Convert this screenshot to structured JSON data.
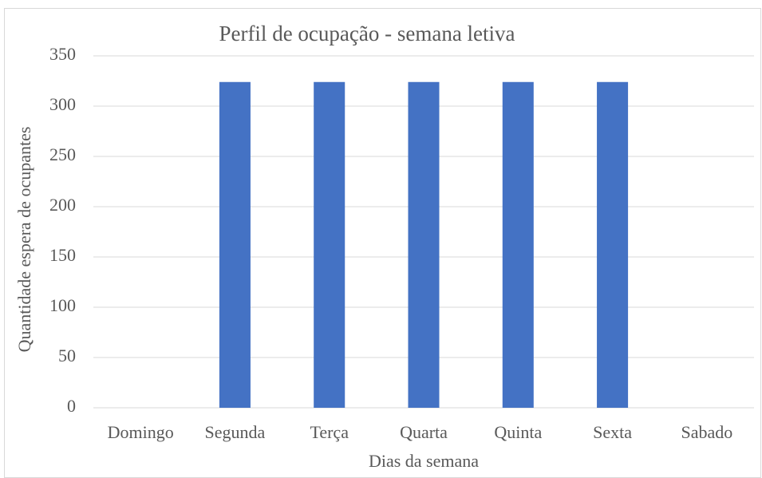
{
  "chart_data": {
    "type": "bar",
    "title": "Perfil de ocupação - semana letiva",
    "x_label": "Dias da semana",
    "y_label": "Quantidade espera de ocupantes",
    "categories": [
      "Domingo",
      "Segunda",
      "Terça",
      "Quarta",
      "Quinta",
      "Sexta",
      "Sabado"
    ],
    "values": [
      0,
      324,
      324,
      324,
      324,
      324,
      0
    ],
    "color": "#4472c4",
    "ylim": [
      0,
      350
    ],
    "yticks": [
      0,
      50,
      100,
      150,
      200,
      250,
      300,
      350
    ],
    "grid": true
  }
}
